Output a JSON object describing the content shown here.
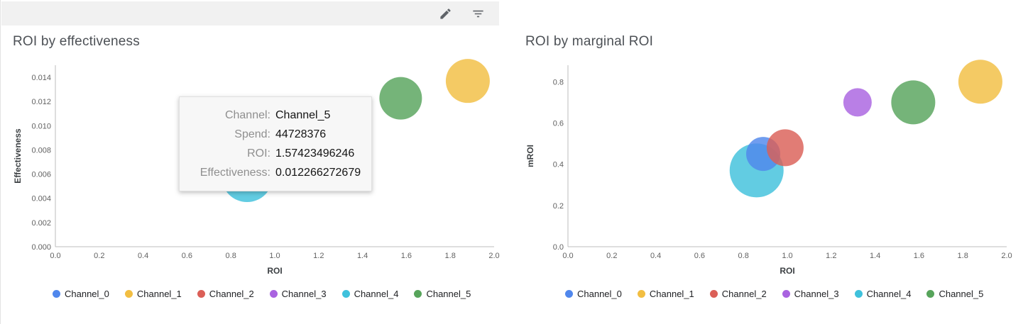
{
  "toolbar": {
    "icons": [
      {
        "name": "edit-icon"
      },
      {
        "name": "filter-list-icon"
      }
    ]
  },
  "palette": {
    "Channel_0": "#5087EC",
    "Channel_1": "#F2BE42",
    "Channel_2": "#DB5F57",
    "Channel_3": "#A963E0",
    "Channel_4": "#3FC1DC",
    "Channel_5": "#57A45B"
  },
  "channels": [
    "Channel_0",
    "Channel_1",
    "Channel_2",
    "Channel_3",
    "Channel_4",
    "Channel_5"
  ],
  "tooltip": {
    "rows": [
      {
        "label": "Channel:",
        "value": "Channel_5"
      },
      {
        "label": "Spend:",
        "value": "44728376"
      },
      {
        "label": "ROI:",
        "value": "1.57423496246"
      },
      {
        "label": "Effectiveness:",
        "value": "0.012266272679"
      }
    ]
  },
  "chart_data": [
    {
      "type": "scatter",
      "title": "ROI by effectiveness",
      "xlabel": "ROI",
      "ylabel": "Effectiveness",
      "xlim": [
        0,
        2.0
      ],
      "ylim": [
        0,
        0.015
      ],
      "xticks": [
        0,
        0.2,
        0.4,
        0.6,
        0.8,
        1.0,
        1.2,
        1.4,
        1.6,
        1.8,
        2.0
      ],
      "yticks": [
        0,
        0.002,
        0.004,
        0.006,
        0.008,
        0.01,
        0.012,
        0.014
      ],
      "x_decimals": 1,
      "y_decimals": 3,
      "grid": false,
      "legend_position": "bottom",
      "points": [
        {
          "channel": "Channel_4",
          "x": 0.874,
          "y": 0.0058,
          "r": 36
        },
        {
          "channel": "Channel_0",
          "x": 0.87,
          "y": 0.0064,
          "r": 26
        },
        {
          "channel": "Channel_5",
          "x": 1.574,
          "y": 0.012266,
          "r": 30
        },
        {
          "channel": "Channel_1",
          "x": 1.88,
          "y": 0.0137,
          "r": 31
        }
      ]
    },
    {
      "type": "scatter",
      "title": "ROI by marginal ROI",
      "xlabel": "ROI",
      "ylabel": "mROI",
      "xlim": [
        0,
        2.0
      ],
      "ylim": [
        0,
        0.88
      ],
      "xticks": [
        0,
        0.2,
        0.4,
        0.6,
        0.8,
        1.0,
        1.2,
        1.4,
        1.6,
        1.8,
        2.0
      ],
      "yticks": [
        0,
        0.2,
        0.4,
        0.6,
        0.8
      ],
      "x_decimals": 1,
      "y_decimals": 1,
      "grid": false,
      "legend_position": "bottom",
      "points": [
        {
          "channel": "Channel_4",
          "x": 0.86,
          "y": 0.37,
          "r": 38
        },
        {
          "channel": "Channel_0",
          "x": 0.89,
          "y": 0.45,
          "r": 24
        },
        {
          "channel": "Channel_2",
          "x": 0.99,
          "y": 0.48,
          "r": 26
        },
        {
          "channel": "Channel_3",
          "x": 1.32,
          "y": 0.7,
          "r": 20
        },
        {
          "channel": "Channel_5",
          "x": 1.574,
          "y": 0.7,
          "r": 31
        },
        {
          "channel": "Channel_1",
          "x": 1.88,
          "y": 0.8,
          "r": 31
        }
      ]
    }
  ]
}
